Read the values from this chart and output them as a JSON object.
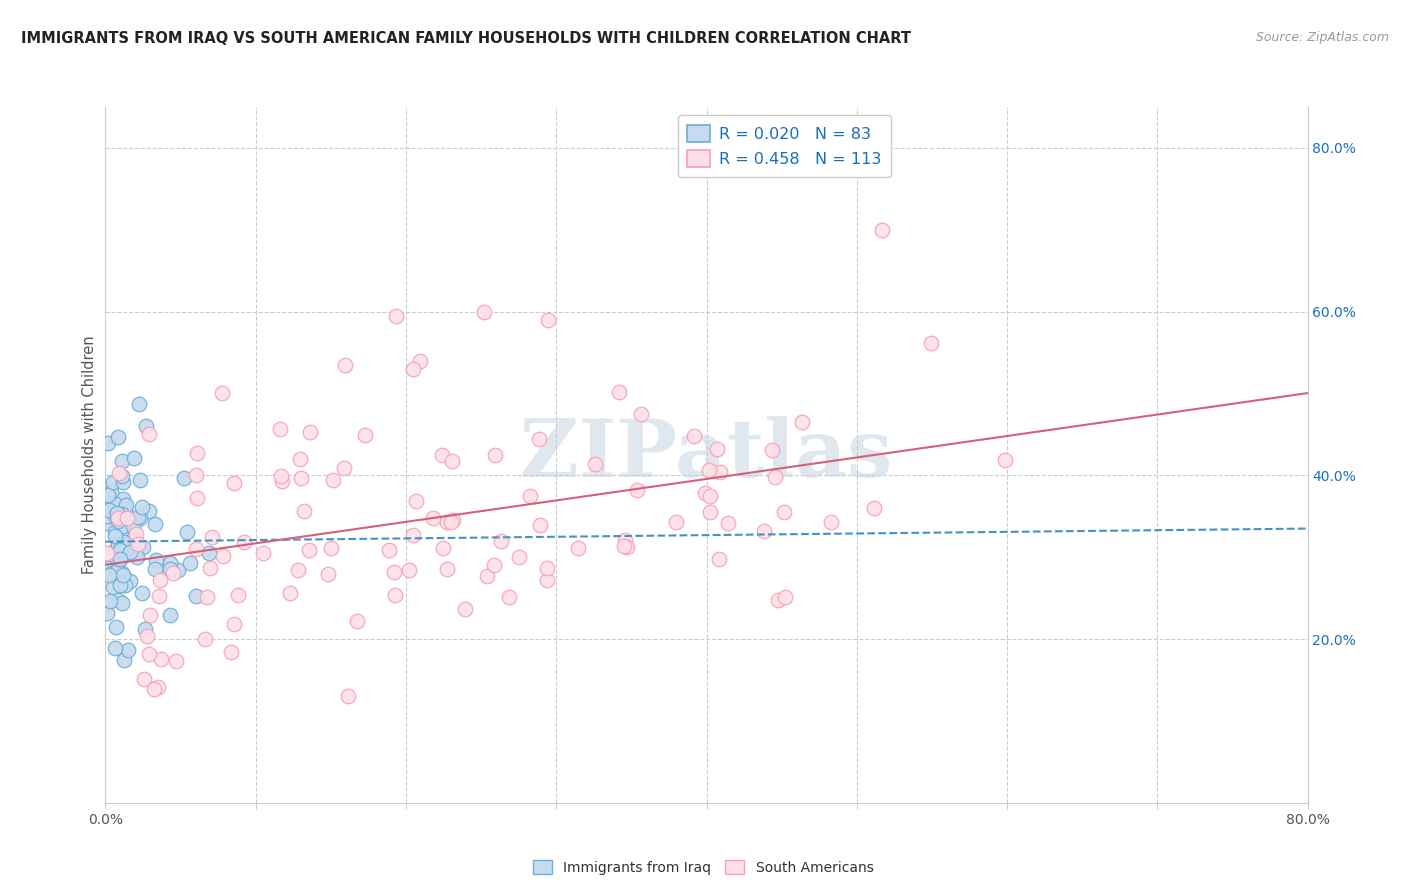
{
  "title": "IMMIGRANTS FROM IRAQ VS SOUTH AMERICAN FAMILY HOUSEHOLDS WITH CHILDREN CORRELATION CHART",
  "source": "Source: ZipAtlas.com",
  "ylabel": "Family Households with Children",
  "xlim": [
    0.0,
    0.8
  ],
  "ylim": [
    0.0,
    0.85
  ],
  "blue_color": "#6baed6",
  "blue_fill": "#c6dbef",
  "pink_color": "#fa9fb5",
  "pink_fill": "#fce0e8",
  "blue_line_color": "#4292c6",
  "pink_line_color": "#d6607a",
  "legend_text_color": "#1a6fbd",
  "watermark": "ZIPatlas",
  "grid_color": "#cccccc",
  "background_color": "#ffffff",
  "title_color": "#222222",
  "source_color": "#999999",
  "axis_color": "#cccccc",
  "tick_color": "#555555",
  "right_tick_color": "#1a6fbd"
}
